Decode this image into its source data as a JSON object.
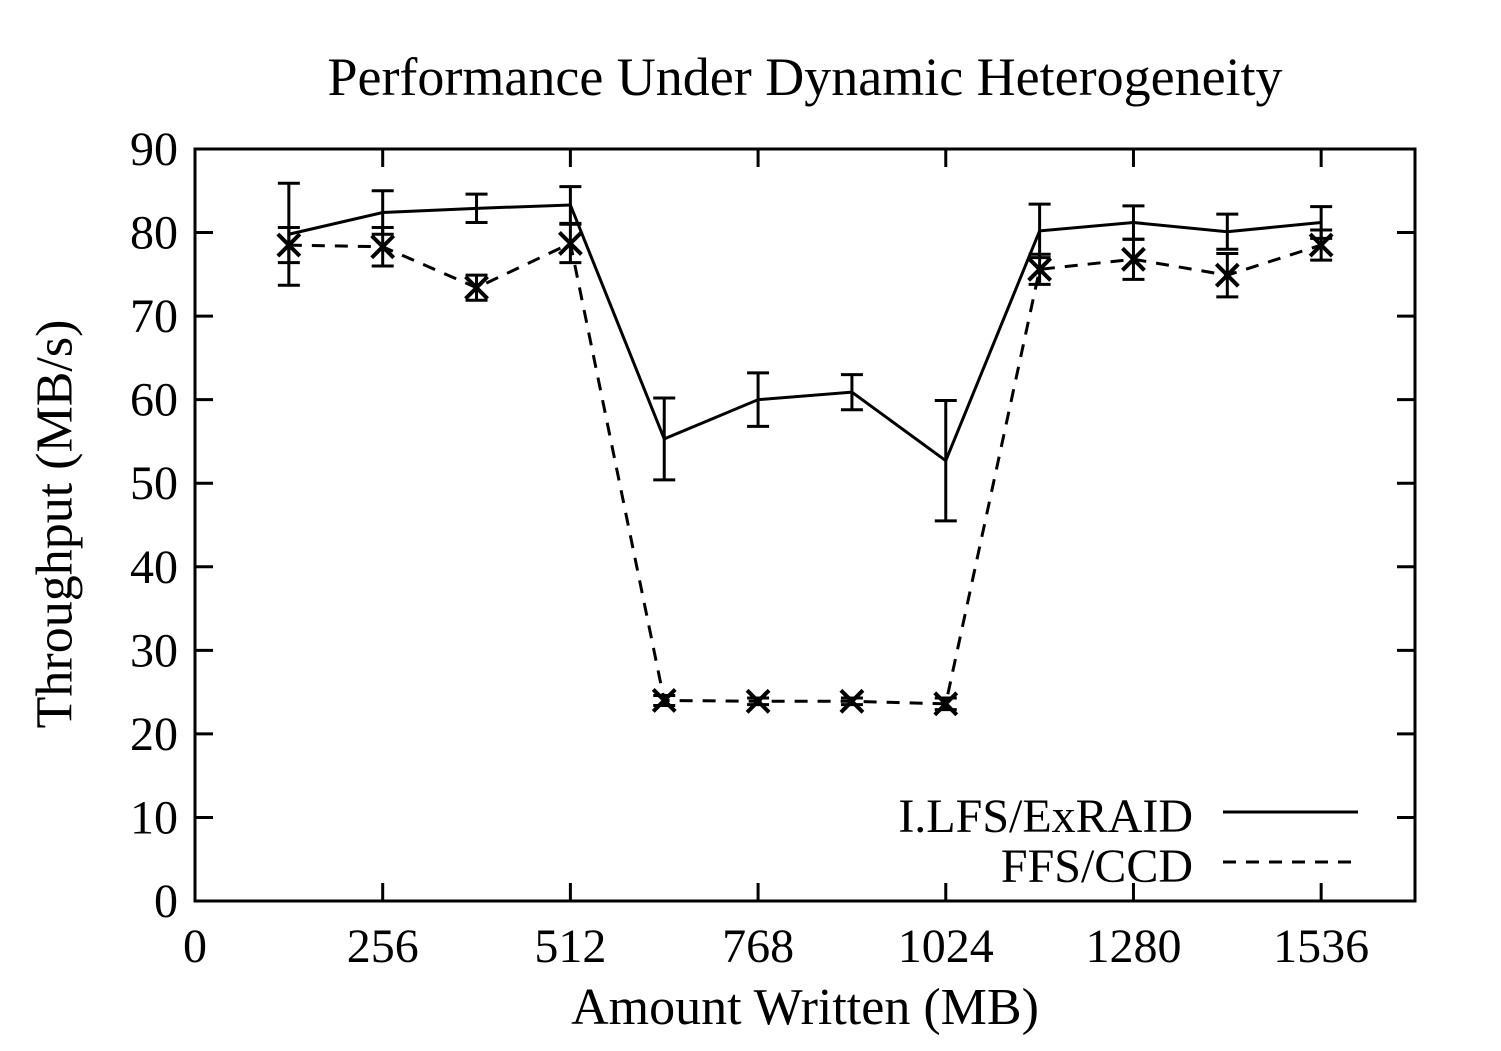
{
  "colors": {
    "foreground": "#000000",
    "background": "#ffffff"
  },
  "chart_data": {
    "type": "line",
    "title": "Performance Under Dynamic Heterogeneity",
    "xlabel": "Amount Written (MB)",
    "ylabel": "Throughput (MB/s)",
    "xlim": [
      0,
      1664
    ],
    "ylim": [
      0,
      90
    ],
    "xticks": [
      "0",
      "256",
      "512",
      "768",
      "1024",
      "1280",
      "1536"
    ],
    "xtick_values": [
      0,
      256,
      512,
      768,
      1024,
      1280,
      1536
    ],
    "yticks": [
      "0",
      "10",
      "20",
      "30",
      "40",
      "50",
      "60",
      "70",
      "80",
      "90"
    ],
    "ytick_values": [
      0,
      10,
      20,
      30,
      40,
      50,
      60,
      70,
      80,
      90
    ],
    "grid": false,
    "legend_position": "inside-bottom-right",
    "x": [
      128,
      256,
      384,
      512,
      640,
      768,
      896,
      1024,
      1152,
      1280,
      1408,
      1536
    ],
    "series": [
      {
        "name": "I.LFS/ExRAID",
        "line_style": "solid",
        "marker": "none",
        "values": [
          79.8,
          82.4,
          82.9,
          83.3,
          55.3,
          60.0,
          60.9,
          52.7,
          80.2,
          81.2,
          80.1,
          81.2
        ],
        "errors": [
          6.1,
          2.6,
          1.7,
          2.2,
          4.9,
          3.2,
          2.1,
          7.2,
          3.2,
          2.0,
          2.1,
          1.9
        ]
      },
      {
        "name": "FFS/CCD",
        "line_style": "dashed",
        "marker": "x",
        "values": [
          78.5,
          78.3,
          73.4,
          78.7,
          24.0,
          23.9,
          23.9,
          23.6,
          75.6,
          76.8,
          74.9,
          78.5
        ],
        "errors": [
          2.1,
          2.3,
          1.5,
          2.3,
          0.6,
          0.4,
          0.4,
          0.7,
          1.8,
          2.4,
          2.6,
          1.8
        ]
      }
    ]
  }
}
